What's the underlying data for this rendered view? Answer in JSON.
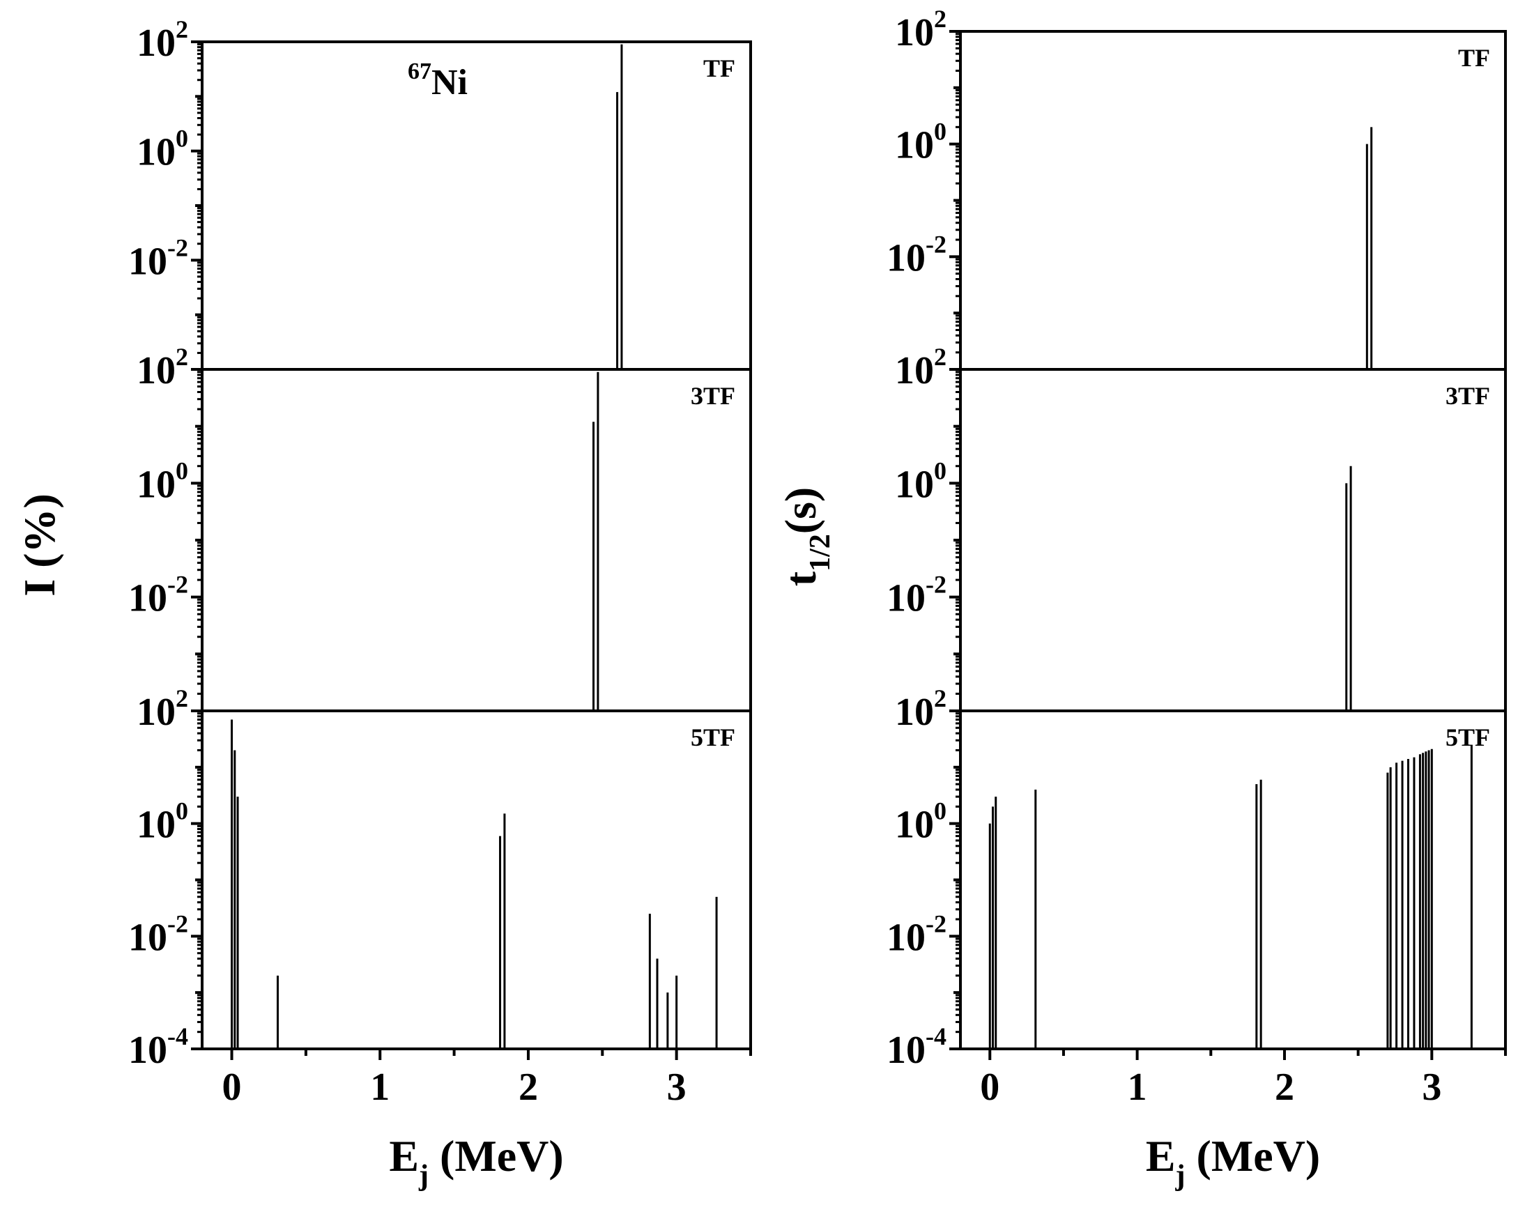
{
  "chart_data": [
    {
      "type": "bar",
      "column": "left",
      "ylabel": "I (%)",
      "xlabel": {
        "main": "E",
        "sub": "j",
        "unit": " (MeV)"
      },
      "ylim": [
        0.0001,
        100
      ],
      "yscale": "log",
      "xlim": [
        -0.2,
        3.5
      ],
      "xticks": [
        "0",
        "1",
        "2",
        "3"
      ],
      "nuclide": {
        "mass": "67",
        "element": "Ni"
      },
      "panels": [
        {
          "name": "TF",
          "yticks": [
            {
              "base": "10",
              "exp": "2"
            },
            {
              "base": "10",
              "exp": "0"
            },
            {
              "base": "10",
              "exp": "-2"
            }
          ],
          "points": [
            {
              "x": 2.6,
              "y": 12
            },
            {
              "x": 2.63,
              "y": 90
            }
          ]
        },
        {
          "name": "3TF",
          "yticks": [
            {
              "base": "10",
              "exp": "2"
            },
            {
              "base": "10",
              "exp": "0"
            },
            {
              "base": "10",
              "exp": "-2"
            }
          ],
          "points": [
            {
              "x": 2.44,
              "y": 12
            },
            {
              "x": 2.47,
              "y": 90
            }
          ]
        },
        {
          "name": "5TF",
          "yticks": [
            {
              "base": "10",
              "exp": "2"
            },
            {
              "base": "10",
              "exp": "0"
            },
            {
              "base": "10",
              "exp": "-2"
            },
            {
              "base": "10",
              "exp": "-4"
            }
          ],
          "points": [
            {
              "x": 0.0,
              "y": 70
            },
            {
              "x": 0.02,
              "y": 20
            },
            {
              "x": 0.04,
              "y": 3
            },
            {
              "x": 0.31,
              "y": 0.002
            },
            {
              "x": 1.81,
              "y": 0.6
            },
            {
              "x": 1.84,
              "y": 1.5
            },
            {
              "x": 2.82,
              "y": 0.025
            },
            {
              "x": 2.87,
              "y": 0.004
            },
            {
              "x": 2.94,
              "y": 0.001
            },
            {
              "x": 3.0,
              "y": 0.002
            },
            {
              "x": 3.27,
              "y": 0.05
            }
          ]
        }
      ]
    },
    {
      "type": "bar",
      "column": "right",
      "ylabel": {
        "main": "t",
        "sub": "1/2",
        "unit": "(s)"
      },
      "xlabel": {
        "main": "E",
        "sub": "j",
        "unit": " (MeV)"
      },
      "ylim": [
        0.0001,
        100
      ],
      "yscale": "log",
      "xlim": [
        -0.2,
        3.5
      ],
      "xticks": [
        "0",
        "1",
        "2",
        "3"
      ],
      "panels": [
        {
          "name": "TF",
          "yticks": [
            {
              "base": "10",
              "exp": "2"
            },
            {
              "base": "10",
              "exp": "0"
            },
            {
              "base": "10",
              "exp": "-2"
            }
          ],
          "points": [
            {
              "x": 2.56,
              "y": 1.0
            },
            {
              "x": 2.59,
              "y": 2.0
            }
          ]
        },
        {
          "name": "3TF",
          "yticks": [
            {
              "base": "10",
              "exp": "2"
            },
            {
              "base": "10",
              "exp": "0"
            },
            {
              "base": "10",
              "exp": "-2"
            }
          ],
          "points": [
            {
              "x": 2.42,
              "y": 1.0
            },
            {
              "x": 2.45,
              "y": 2.0
            }
          ]
        },
        {
          "name": "5TF",
          "yticks": [
            {
              "base": "10",
              "exp": "2"
            },
            {
              "base": "10",
              "exp": "0"
            },
            {
              "base": "10",
              "exp": "-2"
            },
            {
              "base": "10",
              "exp": "-4"
            }
          ],
          "points": [
            {
              "x": 0.0,
              "y": 1.0
            },
            {
              "x": 0.02,
              "y": 2.0
            },
            {
              "x": 0.04,
              "y": 3.0
            },
            {
              "x": 0.31,
              "y": 4.0
            },
            {
              "x": 1.81,
              "y": 5.0
            },
            {
              "x": 1.84,
              "y": 6.0
            },
            {
              "x": 2.7,
              "y": 8
            },
            {
              "x": 2.72,
              "y": 10
            },
            {
              "x": 2.76,
              "y": 12
            },
            {
              "x": 2.8,
              "y": 13
            },
            {
              "x": 2.84,
              "y": 14
            },
            {
              "x": 2.88,
              "y": 15
            },
            {
              "x": 2.92,
              "y": 17
            },
            {
              "x": 2.94,
              "y": 18
            },
            {
              "x": 2.96,
              "y": 19
            },
            {
              "x": 2.98,
              "y": 20
            },
            {
              "x": 3.0,
              "y": 21
            },
            {
              "x": 3.27,
              "y": 25
            }
          ]
        }
      ]
    }
  ]
}
